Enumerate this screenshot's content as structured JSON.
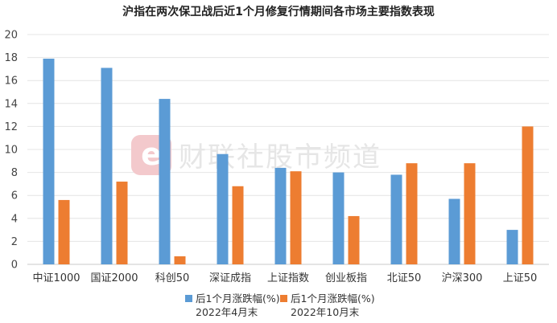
{
  "chart_data": {
    "type": "bar",
    "title": "沪指在两次保卫战后近1个月修复行情期间各市场主要指数表现",
    "categories": [
      "中证1000",
      "国证2000",
      "科创50",
      "深证成指",
      "上证指数",
      "创业板指",
      "北证50",
      "沪深300",
      "上证50"
    ],
    "series": [
      {
        "name": "后1个月涨跌幅(%)\n2022年4月末",
        "color": "#5b9bd5",
        "values": [
          17.9,
          17.1,
          14.4,
          9.6,
          8.4,
          8.0,
          7.8,
          5.7,
          3.0
        ]
      },
      {
        "name": "后1个月涨跌幅(%)\n2022年10月末",
        "color": "#ed7d31",
        "values": [
          5.6,
          7.2,
          0.7,
          6.8,
          8.1,
          4.2,
          8.8,
          8.8,
          12.0
        ]
      }
    ],
    "ylim": [
      0,
      20
    ],
    "yticks": [
      0,
      2,
      4,
      6,
      8,
      10,
      12,
      14,
      16,
      18,
      20
    ],
    "grid": true,
    "legend_position": "bottom",
    "xlabel": "",
    "ylabel": ""
  },
  "watermark": {
    "text": "财联社股市频道",
    "logo_letter": "e",
    "logo_color": "#f3c9cc"
  }
}
